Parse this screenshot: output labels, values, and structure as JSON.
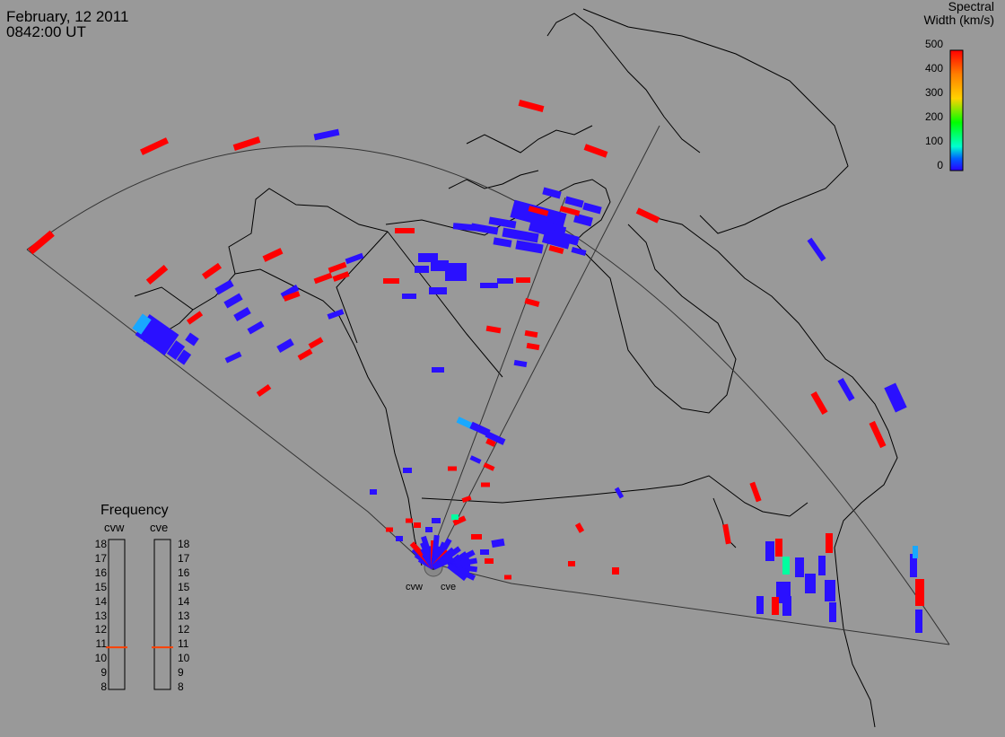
{
  "header": {
    "date": "February, 12 2011",
    "time": "0842:00 UT"
  },
  "colorbar": {
    "title_line1": "Spectral",
    "title_line2": "Width (km/s)",
    "ticks": [
      "500",
      "400",
      "300",
      "200",
      "100",
      "0"
    ],
    "colors": [
      "#ff0000",
      "#ff7f00",
      "#ffd200",
      "#00ff00",
      "#00ffd0",
      "#0060ff",
      "#2a00ff"
    ]
  },
  "frequency": {
    "title": "Frequency",
    "radars": [
      "cvw",
      "cve"
    ],
    "scale": [
      "18",
      "17",
      "16",
      "15",
      "14",
      "13",
      "12",
      "11",
      "10",
      "9",
      "8"
    ],
    "cvw_mhz": 10.7,
    "cve_mhz": 10.7,
    "marker_color": "#ff4000"
  },
  "sites": {
    "west": "cvw",
    "east": "cve"
  },
  "palette": {
    "red": "#ff0000",
    "blue": "#2a10ff",
    "cyan": "#19a8ff",
    "green": "#00ffa0"
  }
}
